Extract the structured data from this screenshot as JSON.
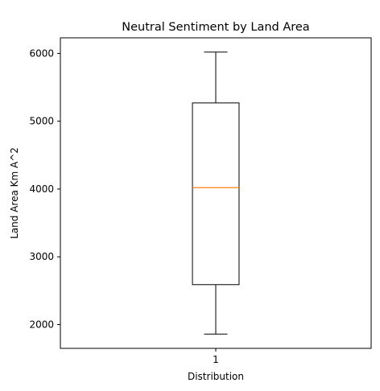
{
  "chart_data": {
    "type": "boxplot",
    "title": "Neutral Sentiment by Land Area",
    "xlabel": "Distribution",
    "ylabel": "Land Area Km A^2",
    "categories": [
      "1"
    ],
    "boxes": [
      {
        "category": "1",
        "whisker_low": 1860,
        "q1": 2590,
        "median": 4020,
        "q3": 5270,
        "whisker_high": 6020
      }
    ],
    "ylim": [
      1650,
      6230
    ],
    "yticks": [
      2000,
      3000,
      4000,
      5000,
      6000
    ],
    "grid": false,
    "colors": {
      "box": "#000000",
      "median": "#ff7f0e"
    }
  }
}
